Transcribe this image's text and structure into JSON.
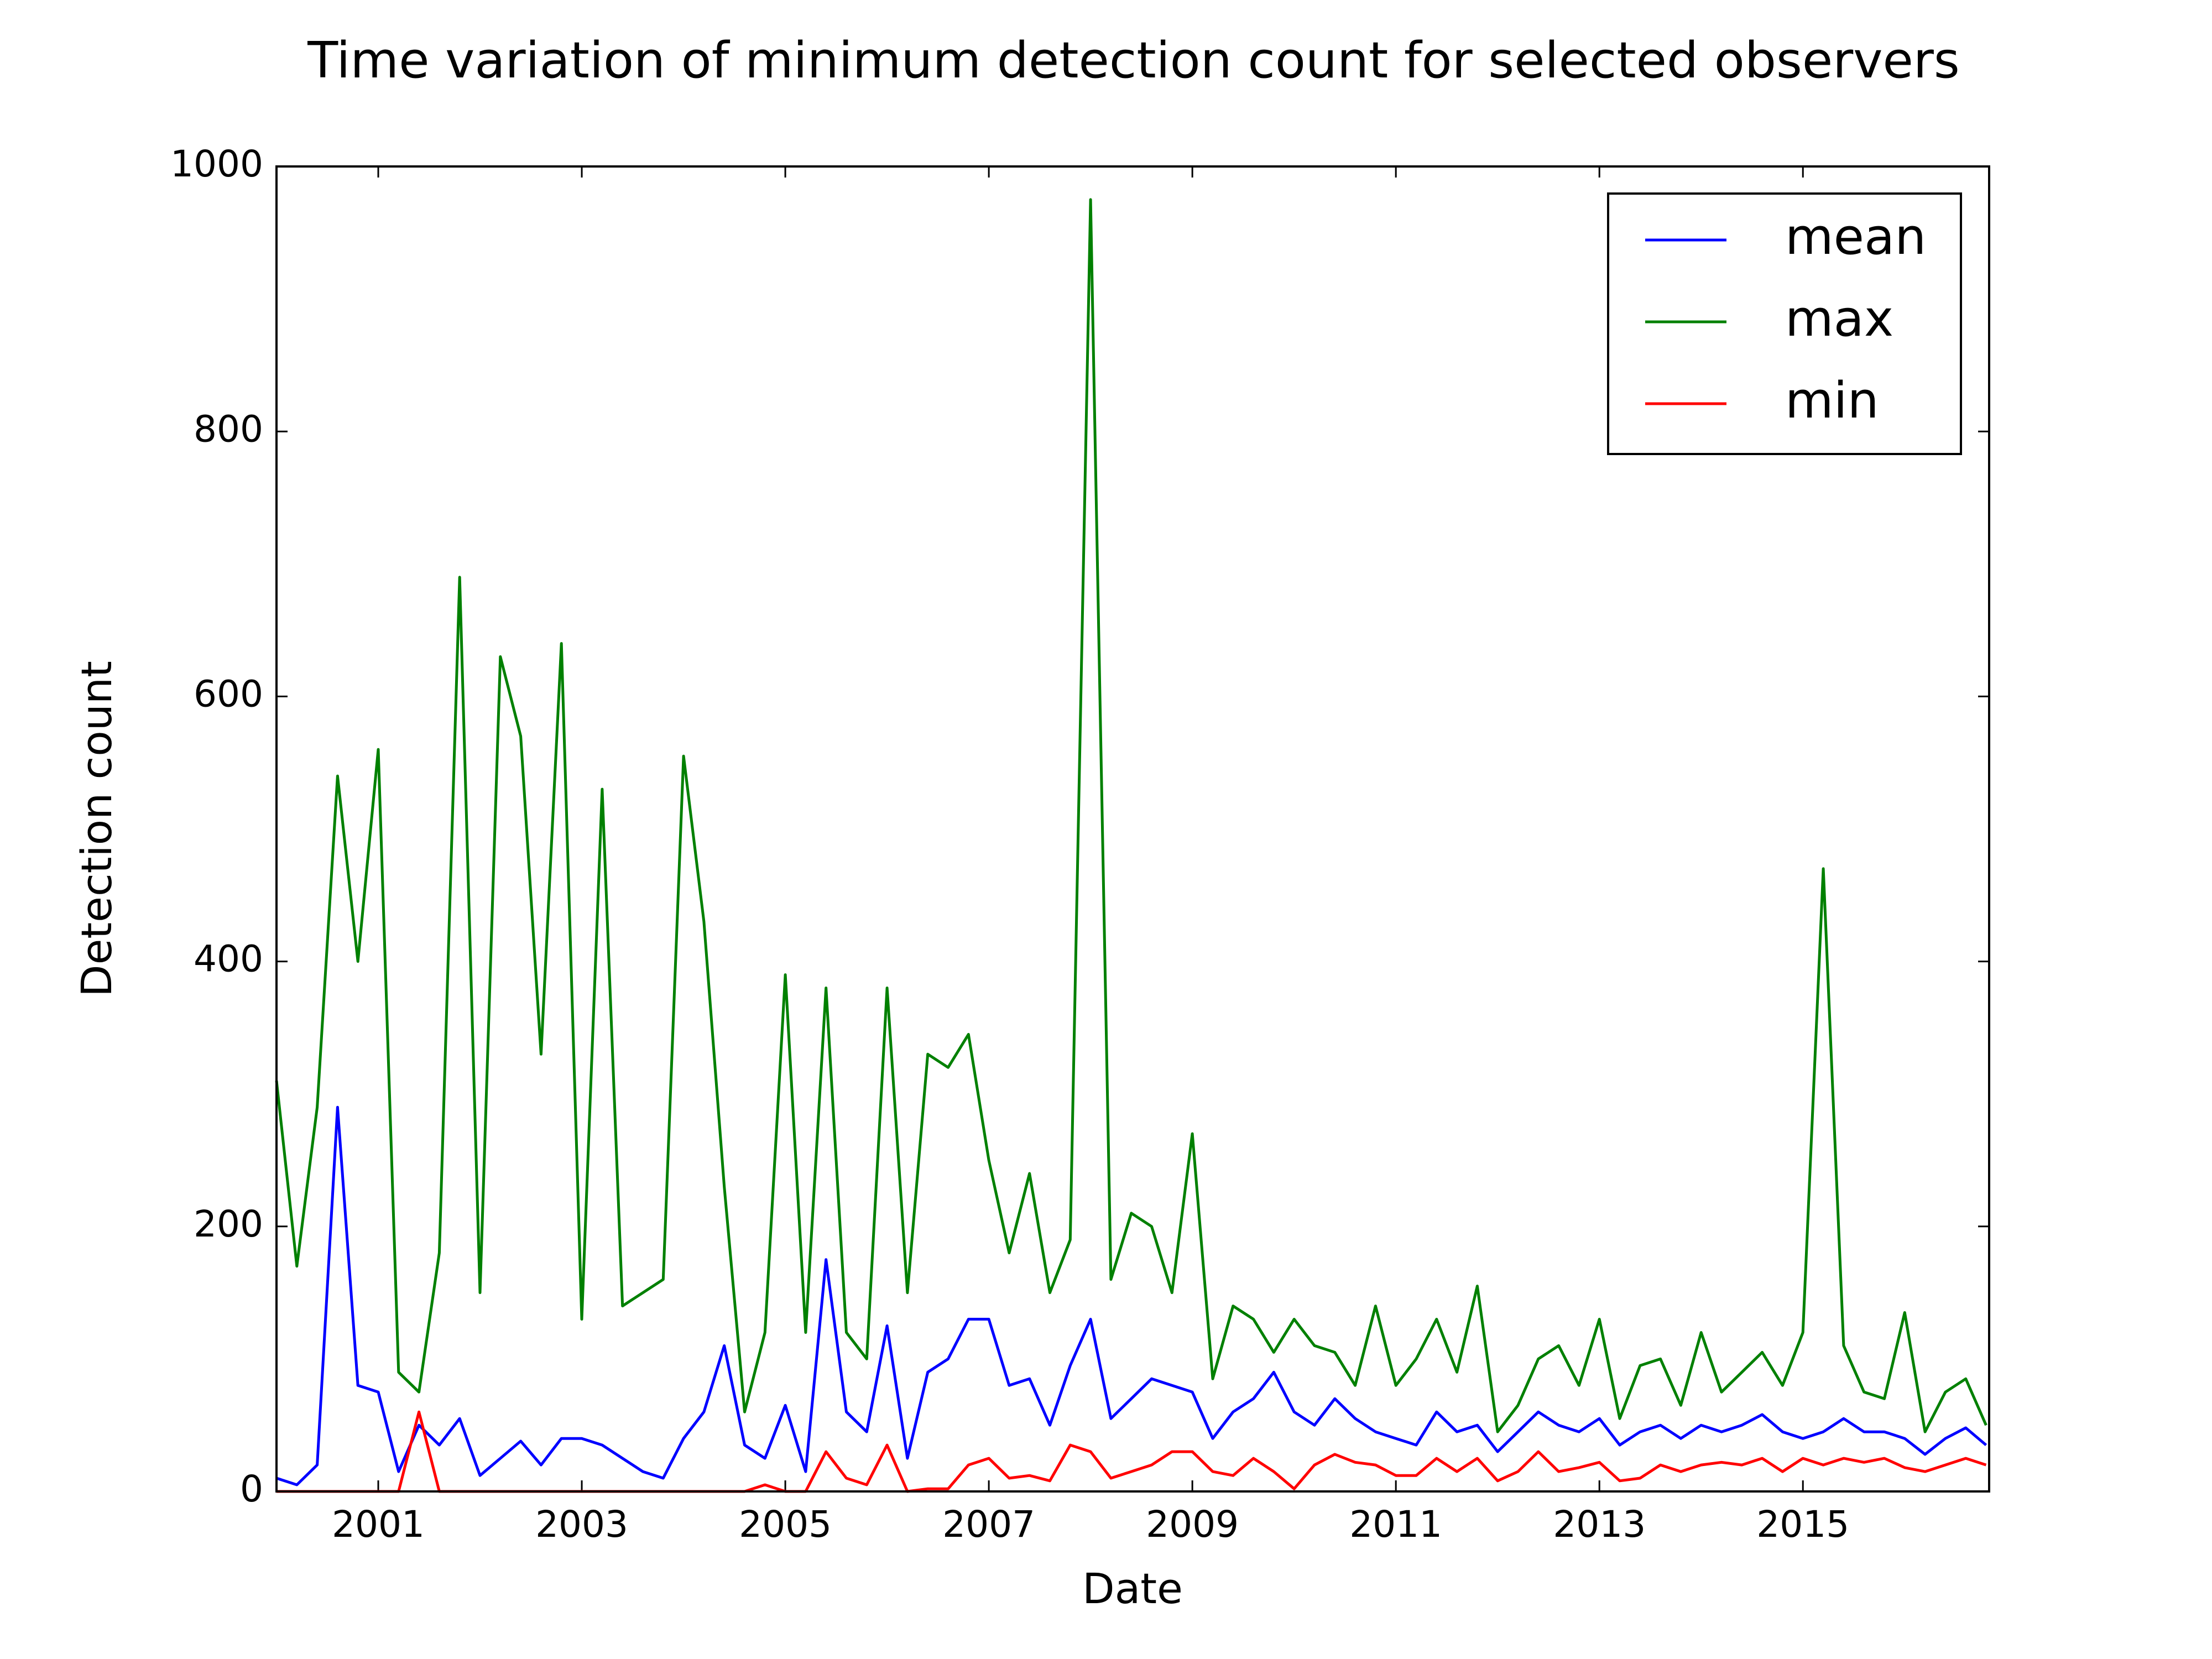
{
  "chart_data": {
    "type": "line",
    "title": "Time variation of minimum detection count for selected observers",
    "x_label": "Date",
    "y_label": "Detection count",
    "x": [
      2000.0,
      2000.2,
      2000.4,
      2000.6,
      2000.8,
      2001.0,
      2001.2,
      2001.4,
      2001.6,
      2001.8,
      2002.0,
      2002.2,
      2002.4,
      2002.6,
      2002.8,
      2003.0,
      2003.2,
      2003.4,
      2003.6,
      2003.8,
      2004.0,
      2004.2,
      2004.4,
      2004.6,
      2004.8,
      2005.0,
      2005.2,
      2005.4,
      2005.6,
      2005.8,
      2006.0,
      2006.2,
      2006.4,
      2006.6,
      2006.8,
      2007.0,
      2007.2,
      2007.4,
      2007.6,
      2007.8,
      2008.0,
      2008.2,
      2008.4,
      2008.6,
      2008.8,
      2009.0,
      2009.2,
      2009.4,
      2009.6,
      2009.8,
      2010.0,
      2010.2,
      2010.4,
      2010.6,
      2010.8,
      2011.0,
      2011.2,
      2011.4,
      2011.6,
      2011.8,
      2012.0,
      2012.2,
      2012.4,
      2012.6,
      2012.8,
      2013.0,
      2013.2,
      2013.4,
      2013.6,
      2013.8,
      2014.0,
      2014.2,
      2014.4,
      2014.6,
      2014.8,
      2015.0,
      2015.2,
      2015.4,
      2015.6,
      2015.8,
      2016.0,
      2016.2,
      2016.4,
      2016.6,
      2016.8
    ],
    "series": [
      {
        "name": "mean",
        "color": "#0000ff",
        "values": [
          10,
          5,
          20,
          290,
          80,
          75,
          15,
          50,
          35,
          55,
          12,
          25,
          38,
          20,
          40,
          40,
          35,
          25,
          15,
          10,
          40,
          60,
          110,
          35,
          25,
          65,
          15,
          175,
          60,
          45,
          125,
          25,
          90,
          100,
          130,
          130,
          80,
          85,
          50,
          95,
          130,
          55,
          70,
          85,
          80,
          75,
          40,
          60,
          70,
          90,
          60,
          50,
          70,
          55,
          45,
          40,
          35,
          60,
          45,
          50,
          30,
          45,
          60,
          50,
          45,
          55,
          35,
          45,
          50,
          40,
          50,
          45,
          50,
          58,
          45,
          40,
          45,
          55,
          45,
          45,
          40,
          28,
          40,
          48,
          35
        ]
      },
      {
        "name": "max",
        "color": "#008000",
        "values": [
          310,
          170,
          290,
          540,
          400,
          560,
          90,
          75,
          180,
          690,
          150,
          630,
          570,
          330,
          640,
          130,
          530,
          140,
          150,
          160,
          555,
          430,
          230,
          60,
          120,
          390,
          120,
          380,
          120,
          100,
          380,
          150,
          330,
          320,
          345,
          250,
          180,
          240,
          150,
          190,
          975,
          160,
          210,
          200,
          150,
          270,
          85,
          140,
          130,
          105,
          130,
          110,
          105,
          80,
          140,
          80,
          100,
          130,
          90,
          155,
          45,
          65,
          100,
          110,
          80,
          130,
          55,
          95,
          100,
          65,
          120,
          75,
          90,
          105,
          80,
          120,
          470,
          110,
          75,
          70,
          135,
          45,
          75,
          85,
          50
        ]
      },
      {
        "name": "min",
        "color": "#ff0000",
        "values": [
          0,
          0,
          0,
          0,
          0,
          0,
          0,
          60,
          0,
          0,
          0,
          0,
          0,
          0,
          0,
          0,
          0,
          0,
          0,
          0,
          0,
          0,
          0,
          0,
          5,
          0,
          0,
          30,
          10,
          5,
          35,
          0,
          2,
          2,
          20,
          25,
          10,
          12,
          8,
          35,
          30,
          10,
          15,
          20,
          30,
          30,
          15,
          12,
          25,
          15,
          2,
          20,
          28,
          22,
          20,
          12,
          12,
          25,
          15,
          25,
          8,
          15,
          30,
          15,
          18,
          22,
          8,
          10,
          20,
          15,
          20,
          22,
          20,
          25,
          15,
          25,
          20,
          25,
          22,
          25,
          18,
          15,
          20,
          25,
          20
        ]
      }
    ],
    "xlim": [
      2000,
      2016.83
    ],
    "xticks": [
      2001,
      2003,
      2005,
      2007,
      2009,
      2011,
      2013,
      2015
    ],
    "ylim": [
      0,
      1000
    ],
    "yticks": [
      0,
      200,
      400,
      600,
      800,
      1000
    ],
    "legend": "upper right"
  }
}
